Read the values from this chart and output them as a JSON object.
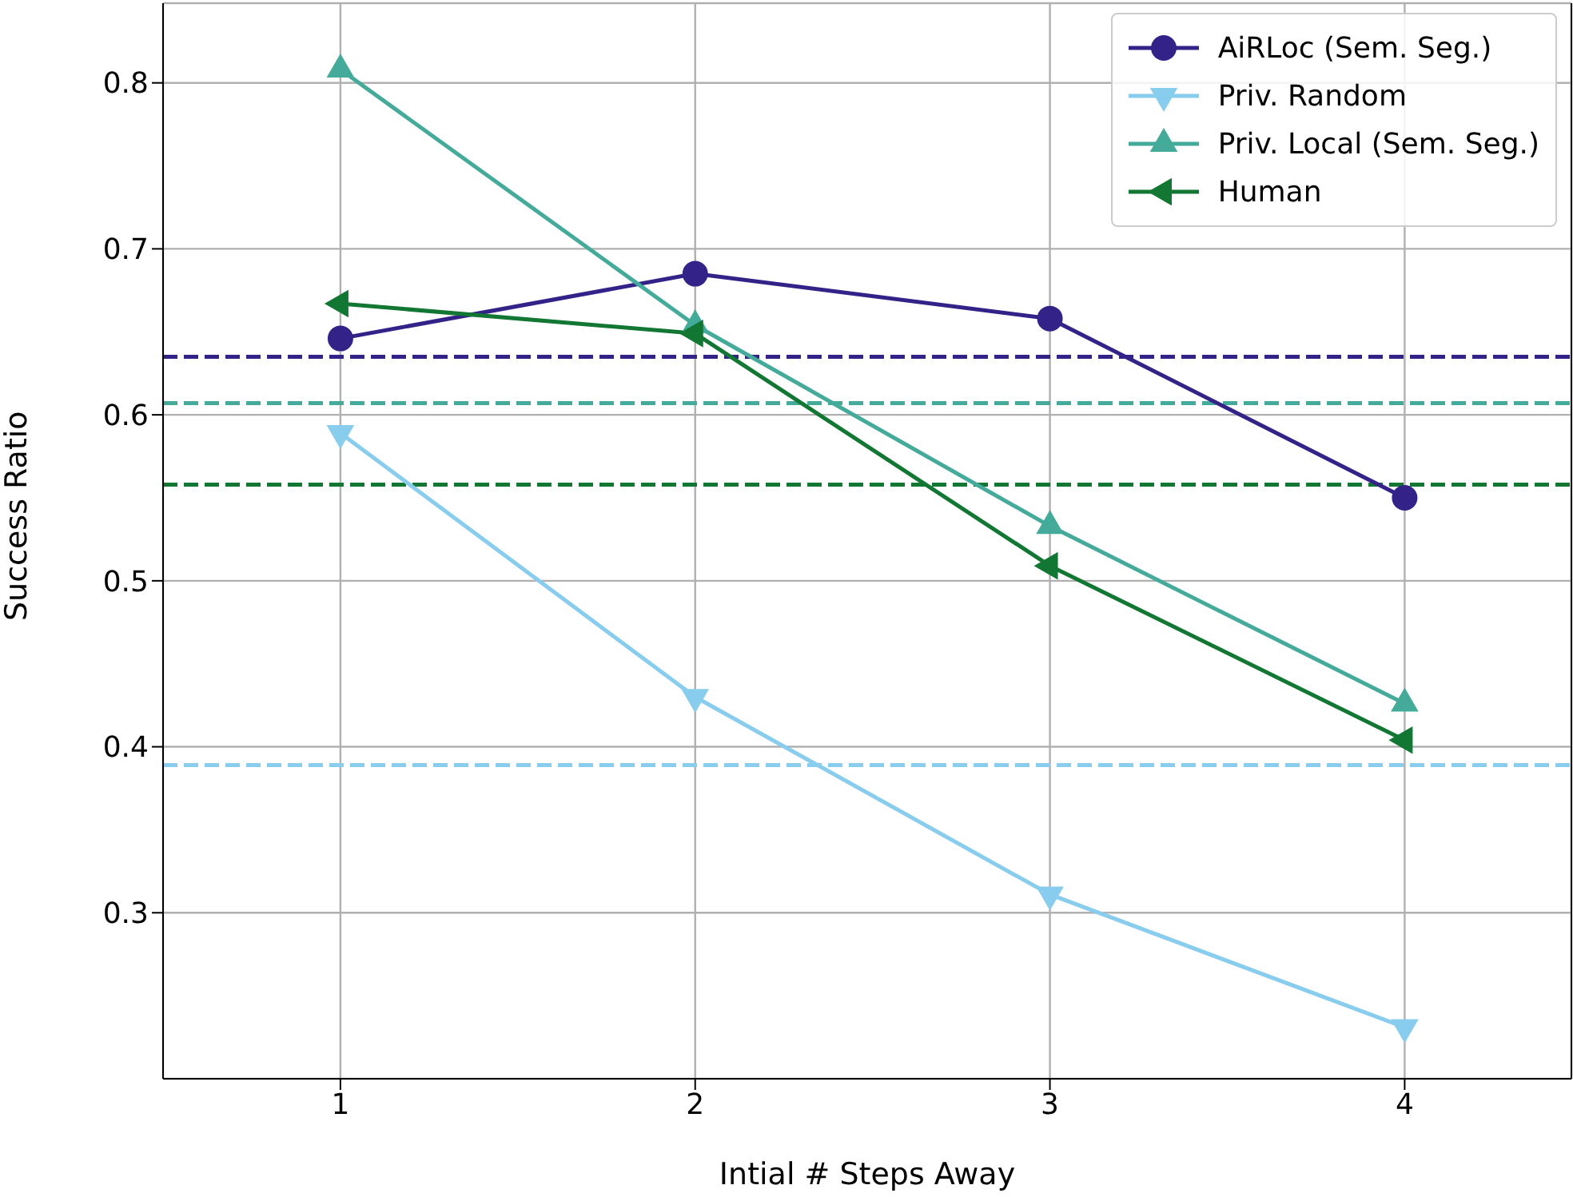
{
  "chart_data": {
    "type": "line",
    "xlabel": "Intial # Steps Away",
    "ylabel": "Success Ratio",
    "x": [
      1,
      2,
      3,
      4
    ],
    "xlim": [
      0.5,
      4.47
    ],
    "xticks": [
      1,
      2,
      3,
      4
    ],
    "ylim": [
      0.2,
      0.848
    ],
    "yticks": [
      0.3,
      0.4,
      0.5,
      0.6,
      0.7,
      0.8
    ],
    "grid": true,
    "legend": "top right",
    "line_style": "solid",
    "series": [
      {
        "name": "AiRLoc (Sem. Seg.)",
        "color": "#332288",
        "marker": "circle",
        "values": [
          0.646,
          0.685,
          0.658,
          0.55
        ]
      },
      {
        "name": "Priv. Random",
        "color": "#88ccee",
        "marker": "triangle-down",
        "values": [
          0.589,
          0.43,
          0.311,
          0.231
        ]
      },
      {
        "name": "Priv. Local (Sem. Seg.)",
        "color": "#44aa99",
        "marker": "triangle",
        "values": [
          0.808,
          0.654,
          0.533,
          0.426
        ]
      },
      {
        "name": "Human",
        "color": "#117733",
        "marker": "triangle-left",
        "values": [
          0.667,
          0.649,
          0.509,
          0.404
        ]
      }
    ],
    "ref_lines": [
      {
        "axis": "y",
        "value": 0.635,
        "color": "#332288",
        "line_style": "dashed"
      },
      {
        "axis": "y",
        "value": 0.389,
        "color": "#88ccee",
        "line_style": "dashed"
      },
      {
        "axis": "y",
        "value": 0.607,
        "color": "#44aa99",
        "line_style": "dashed"
      },
      {
        "axis": "y",
        "value": 0.558,
        "color": "#117733",
        "line_style": "dashed"
      }
    ]
  }
}
